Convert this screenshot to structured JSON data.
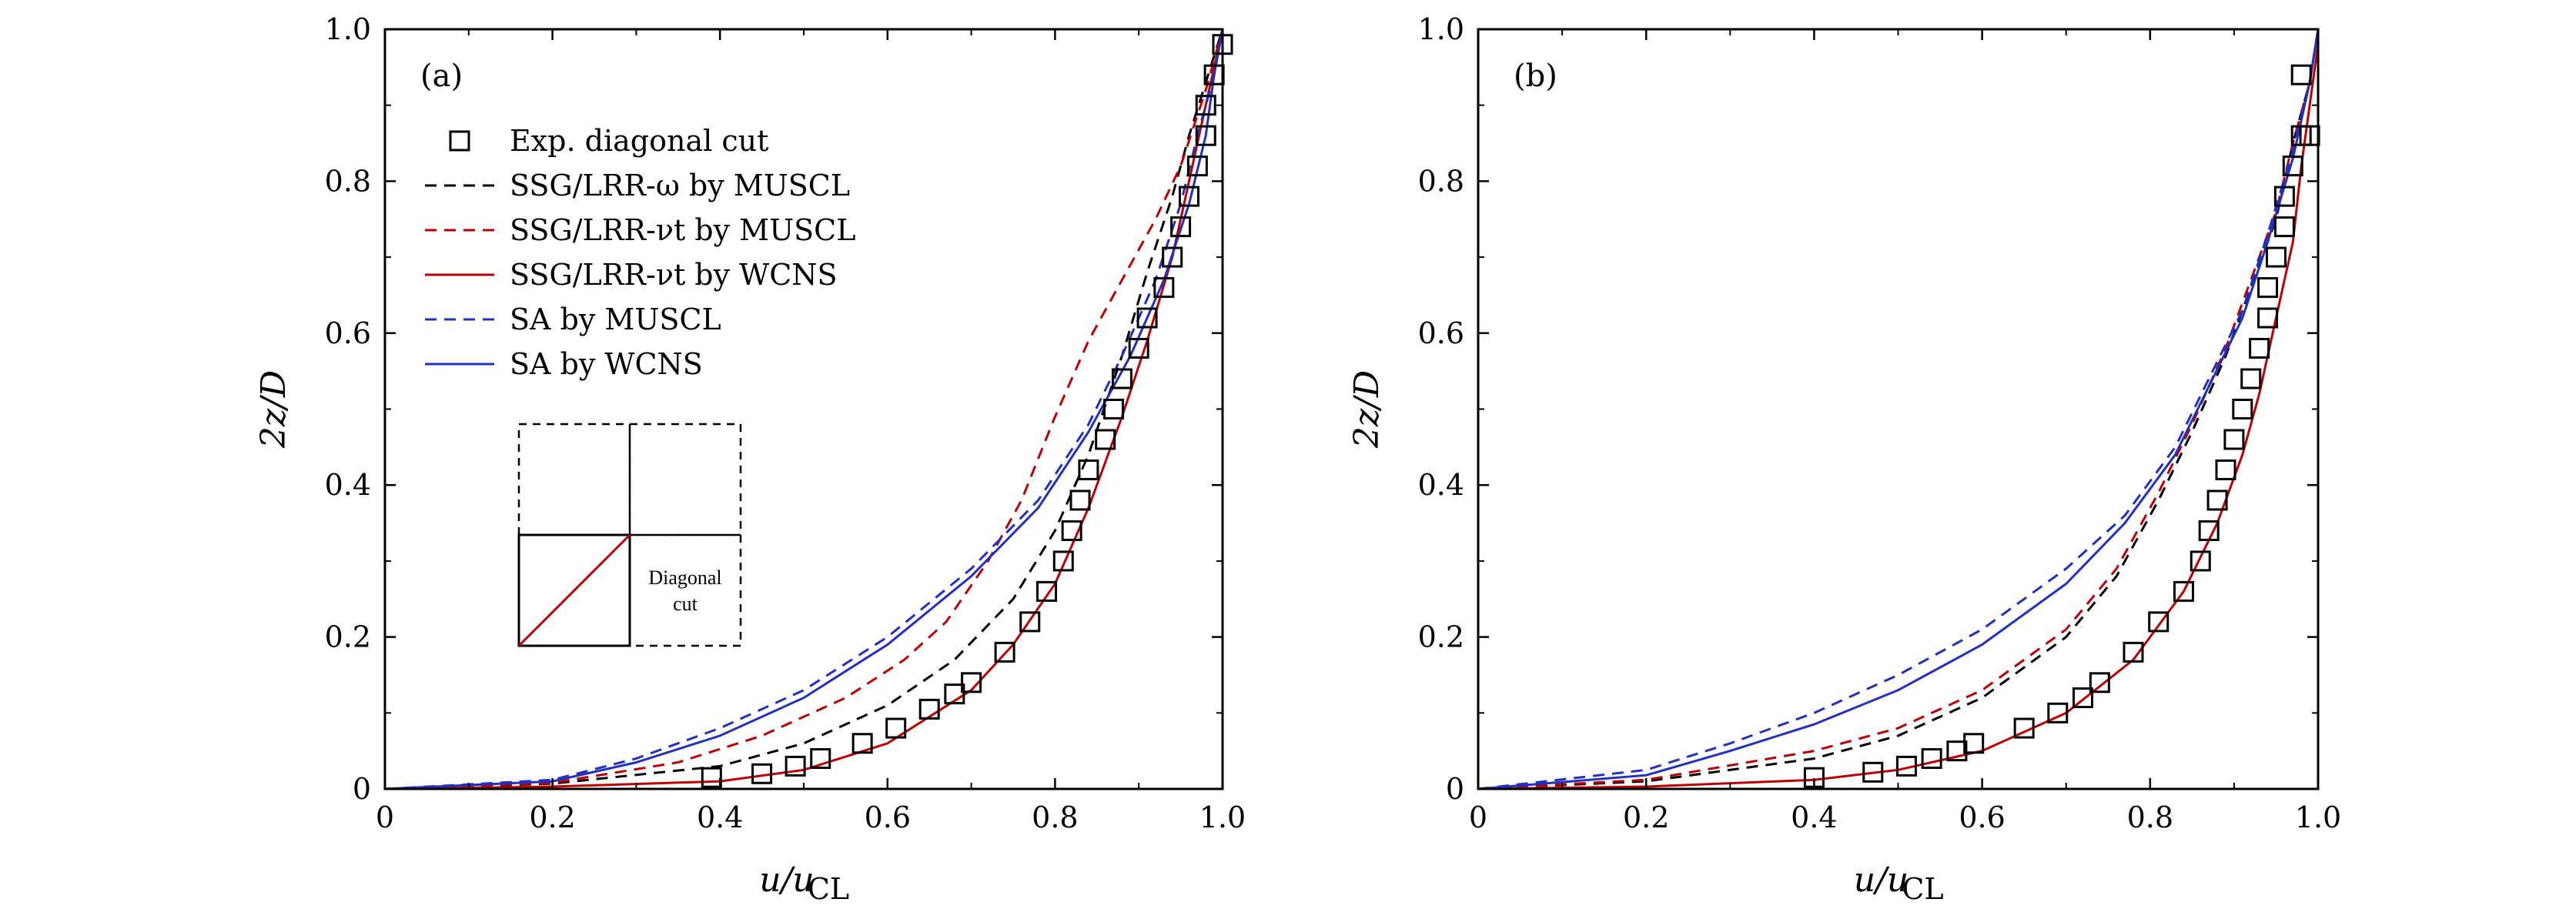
{
  "chart_data": [
    {
      "type": "line",
      "panel_label": "(a)",
      "xlabel": "u/u",
      "xlabel_sub": "CL",
      "ylabel": "2z/D",
      "xlim": [
        0,
        1.0
      ],
      "ylim": [
        0,
        1.0
      ],
      "xticks": [
        "0",
        "0.2",
        "0.4",
        "0.6",
        "0.8",
        "1.0"
      ],
      "yticks": [
        "0",
        "0.2",
        "0.4",
        "0.6",
        "0.8",
        "1.0"
      ],
      "grid": false,
      "legend_position": "upper-left",
      "inset_label_line1": "Diagonal",
      "inset_label_line2": "cut",
      "series": [
        {
          "name": "Exp. diagonal cut",
          "style": "marker-square",
          "color": "#000000",
          "points": [
            [
              0.39,
              0.015
            ],
            [
              0.45,
              0.02
            ],
            [
              0.49,
              0.03
            ],
            [
              0.52,
              0.04
            ],
            [
              0.57,
              0.06
            ],
            [
              0.61,
              0.08
            ],
            [
              0.65,
              0.105
            ],
            [
              0.68,
              0.125
            ],
            [
              0.7,
              0.14
            ],
            [
              0.74,
              0.18
            ],
            [
              0.77,
              0.22
            ],
            [
              0.79,
              0.26
            ],
            [
              0.81,
              0.3
            ],
            [
              0.82,
              0.34
            ],
            [
              0.83,
              0.38
            ],
            [
              0.84,
              0.42
            ],
            [
              0.86,
              0.46
            ],
            [
              0.87,
              0.5
            ],
            [
              0.88,
              0.54
            ],
            [
              0.9,
              0.58
            ],
            [
              0.91,
              0.62
            ],
            [
              0.93,
              0.66
            ],
            [
              0.94,
              0.7
            ],
            [
              0.95,
              0.74
            ],
            [
              0.96,
              0.78
            ],
            [
              0.97,
              0.82
            ],
            [
              0.98,
              0.86
            ],
            [
              0.98,
              0.9
            ],
            [
              0.99,
              0.94
            ],
            [
              1.0,
              0.98
            ]
          ]
        },
        {
          "name": "SSG/LRR-ω by MUSCL",
          "style": "dashed",
          "color": "#000000",
          "points": [
            [
              0,
              0
            ],
            [
              0.2,
              0.007
            ],
            [
              0.4,
              0.03
            ],
            [
              0.5,
              0.06
            ],
            [
              0.6,
              0.11
            ],
            [
              0.68,
              0.17
            ],
            [
              0.75,
              0.25
            ],
            [
              0.8,
              0.34
            ],
            [
              0.84,
              0.44
            ],
            [
              0.88,
              0.57
            ],
            [
              0.91,
              0.68
            ],
            [
              0.94,
              0.78
            ],
            [
              0.96,
              0.86
            ],
            [
              0.98,
              0.93
            ],
            [
              1.0,
              1.0
            ]
          ]
        },
        {
          "name": "SSG/LRR-νt by MUSCL",
          "style": "dashed",
          "color": "#c00000",
          "points": [
            [
              0,
              0
            ],
            [
              0.2,
              0.008
            ],
            [
              0.35,
              0.035
            ],
            [
              0.45,
              0.07
            ],
            [
              0.55,
              0.12
            ],
            [
              0.62,
              0.17
            ],
            [
              0.67,
              0.22
            ],
            [
              0.72,
              0.3
            ],
            [
              0.76,
              0.38
            ],
            [
              0.8,
              0.49
            ],
            [
              0.84,
              0.59
            ],
            [
              0.88,
              0.67
            ],
            [
              0.92,
              0.75
            ],
            [
              0.95,
              0.82
            ],
            [
              0.98,
              0.92
            ],
            [
              1.0,
              1.0
            ]
          ]
        },
        {
          "name": "SSG/LRR-νt by WCNS",
          "style": "solid",
          "color": "#c00000",
          "points": [
            [
              0,
              0
            ],
            [
              0.2,
              0.003
            ],
            [
              0.4,
              0.01
            ],
            [
              0.5,
              0.025
            ],
            [
              0.6,
              0.06
            ],
            [
              0.7,
              0.13
            ],
            [
              0.75,
              0.19
            ],
            [
              0.8,
              0.27
            ],
            [
              0.84,
              0.37
            ],
            [
              0.88,
              0.49
            ],
            [
              0.91,
              0.59
            ],
            [
              0.94,
              0.7
            ],
            [
              0.96,
              0.8
            ],
            [
              0.98,
              0.9
            ],
            [
              1.0,
              1.0
            ]
          ]
        },
        {
          "name": "SA by MUSCL",
          "style": "dashed",
          "color": "#2030c0",
          "points": [
            [
              0,
              0
            ],
            [
              0.2,
              0.012
            ],
            [
              0.3,
              0.04
            ],
            [
              0.4,
              0.08
            ],
            [
              0.5,
              0.13
            ],
            [
              0.6,
              0.2
            ],
            [
              0.7,
              0.29
            ],
            [
              0.78,
              0.38
            ],
            [
              0.84,
              0.48
            ],
            [
              0.88,
              0.57
            ],
            [
              0.92,
              0.67
            ],
            [
              0.95,
              0.77
            ],
            [
              0.97,
              0.86
            ],
            [
              0.99,
              0.94
            ],
            [
              1.0,
              1.0
            ]
          ]
        },
        {
          "name": "SA by WCNS",
          "style": "solid",
          "color": "#2030c0",
          "points": [
            [
              0,
              0
            ],
            [
              0.2,
              0.01
            ],
            [
              0.3,
              0.035
            ],
            [
              0.4,
              0.07
            ],
            [
              0.5,
              0.12
            ],
            [
              0.6,
              0.19
            ],
            [
              0.7,
              0.28
            ],
            [
              0.78,
              0.37
            ],
            [
              0.84,
              0.47
            ],
            [
              0.89,
              0.57
            ],
            [
              0.93,
              0.67
            ],
            [
              0.96,
              0.77
            ],
            [
              0.98,
              0.86
            ],
            [
              0.99,
              0.94
            ],
            [
              1.0,
              1.0
            ]
          ]
        }
      ]
    },
    {
      "type": "line",
      "panel_label": "(b)",
      "xlabel": "u/u",
      "xlabel_sub": "CL",
      "ylabel": "2z/D",
      "xlim": [
        0,
        1.0
      ],
      "ylim": [
        0,
        1.0
      ],
      "xticks": [
        "0",
        "0.2",
        "0.4",
        "0.6",
        "0.8",
        "1.0"
      ],
      "yticks": [
        "0",
        "0.2",
        "0.4",
        "0.6",
        "0.8",
        "1.0"
      ],
      "grid": false,
      "series": [
        {
          "name": "Exp. diagonal cut",
          "style": "marker-square",
          "color": "#000000",
          "points": [
            [
              0.4,
              0.015
            ],
            [
              0.47,
              0.022
            ],
            [
              0.51,
              0.03
            ],
            [
              0.54,
              0.04
            ],
            [
              0.57,
              0.05
            ],
            [
              0.59,
              0.06
            ],
            [
              0.65,
              0.08
            ],
            [
              0.69,
              0.1
            ],
            [
              0.72,
              0.12
            ],
            [
              0.74,
              0.14
            ],
            [
              0.78,
              0.18
            ],
            [
              0.81,
              0.22
            ],
            [
              0.84,
              0.26
            ],
            [
              0.86,
              0.3
            ],
            [
              0.87,
              0.34
            ],
            [
              0.88,
              0.38
            ],
            [
              0.89,
              0.42
            ],
            [
              0.9,
              0.46
            ],
            [
              0.91,
              0.5
            ],
            [
              0.92,
              0.54
            ],
            [
              0.93,
              0.58
            ],
            [
              0.94,
              0.62
            ],
            [
              0.94,
              0.66
            ],
            [
              0.95,
              0.7
            ],
            [
              0.96,
              0.74
            ],
            [
              0.96,
              0.78
            ],
            [
              0.97,
              0.82
            ],
            [
              0.98,
              0.86
            ],
            [
              0.99,
              0.86
            ],
            [
              0.98,
              0.94
            ]
          ]
        },
        {
          "name": "SSG/LRR-ω by MUSCL",
          "style": "dashed",
          "color": "#000000",
          "points": [
            [
              0,
              0
            ],
            [
              0.2,
              0.01
            ],
            [
              0.4,
              0.04
            ],
            [
              0.5,
              0.07
            ],
            [
              0.6,
              0.12
            ],
            [
              0.7,
              0.2
            ],
            [
              0.76,
              0.28
            ],
            [
              0.81,
              0.38
            ],
            [
              0.85,
              0.47
            ],
            [
              0.89,
              0.57
            ],
            [
              0.92,
              0.66
            ],
            [
              0.95,
              0.75
            ],
            [
              0.97,
              0.85
            ],
            [
              0.99,
              0.93
            ],
            [
              1.0,
              1.0
            ]
          ]
        },
        {
          "name": "SSG/LRR-νt by MUSCL",
          "style": "dashed",
          "color": "#c00000",
          "points": [
            [
              0,
              0
            ],
            [
              0.2,
              0.012
            ],
            [
              0.4,
              0.05
            ],
            [
              0.5,
              0.08
            ],
            [
              0.6,
              0.13
            ],
            [
              0.7,
              0.21
            ],
            [
              0.76,
              0.29
            ],
            [
              0.81,
              0.39
            ],
            [
              0.85,
              0.48
            ],
            [
              0.89,
              0.58
            ],
            [
              0.92,
              0.67
            ],
            [
              0.95,
              0.76
            ],
            [
              0.97,
              0.85
            ],
            [
              0.99,
              0.93
            ],
            [
              1.0,
              1.0
            ]
          ]
        },
        {
          "name": "SSG/LRR-νt by WCNS",
          "style": "solid",
          "color": "#c00000",
          "points": [
            [
              0,
              0
            ],
            [
              0.2,
              0.003
            ],
            [
              0.4,
              0.012
            ],
            [
              0.5,
              0.025
            ],
            [
              0.6,
              0.05
            ],
            [
              0.7,
              0.1
            ],
            [
              0.78,
              0.17
            ],
            [
              0.84,
              0.26
            ],
            [
              0.88,
              0.35
            ],
            [
              0.91,
              0.44
            ],
            [
              0.93,
              0.52
            ],
            [
              0.95,
              0.62
            ],
            [
              0.97,
              0.72
            ],
            [
              0.98,
              0.82
            ],
            [
              0.99,
              0.9
            ],
            [
              1.0,
              0.98
            ]
          ]
        },
        {
          "name": "SA by MUSCL",
          "style": "dashed",
          "color": "#2030c0",
          "points": [
            [
              0,
              0
            ],
            [
              0.2,
              0.025
            ],
            [
              0.3,
              0.06
            ],
            [
              0.4,
              0.1
            ],
            [
              0.5,
              0.15
            ],
            [
              0.6,
              0.21
            ],
            [
              0.7,
              0.29
            ],
            [
              0.77,
              0.36
            ],
            [
              0.83,
              0.45
            ],
            [
              0.87,
              0.54
            ],
            [
              0.91,
              0.63
            ],
            [
              0.94,
              0.73
            ],
            [
              0.97,
              0.84
            ],
            [
              0.99,
              0.93
            ],
            [
              1.0,
              1.0
            ]
          ]
        },
        {
          "name": "SA by WCNS",
          "style": "solid",
          "color": "#2030c0",
          "points": [
            [
              0,
              0
            ],
            [
              0.2,
              0.018
            ],
            [
              0.3,
              0.05
            ],
            [
              0.4,
              0.085
            ],
            [
              0.5,
              0.13
            ],
            [
              0.6,
              0.19
            ],
            [
              0.7,
              0.27
            ],
            [
              0.77,
              0.35
            ],
            [
              0.83,
              0.44
            ],
            [
              0.87,
              0.53
            ],
            [
              0.91,
              0.62
            ],
            [
              0.94,
              0.72
            ],
            [
              0.97,
              0.83
            ],
            [
              0.99,
              0.93
            ],
            [
              1.0,
              1.0
            ]
          ]
        }
      ]
    }
  ]
}
